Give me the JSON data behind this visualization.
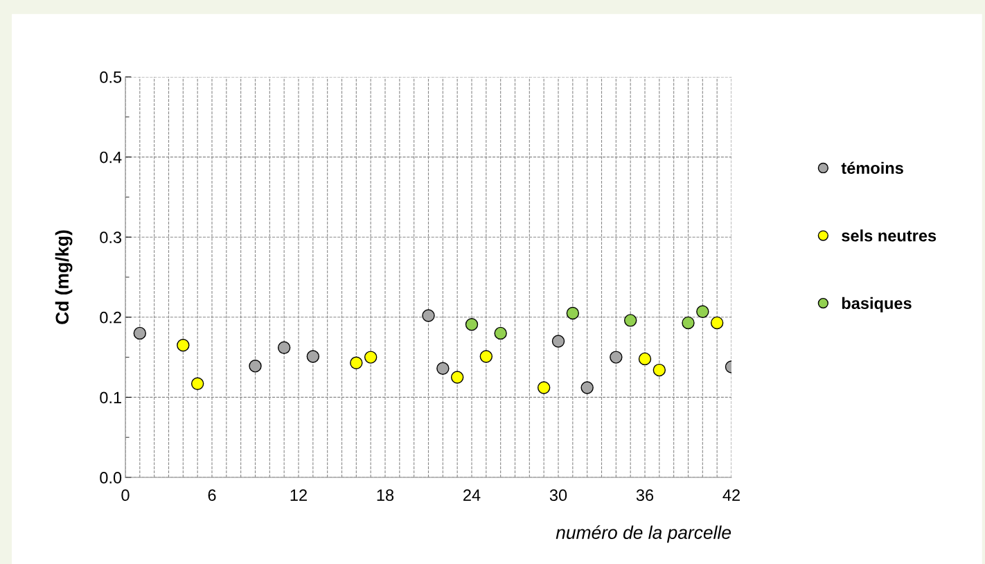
{
  "chart_data": {
    "type": "scatter",
    "xlabel": "numéro de la parcelle",
    "ylabel": "Cd (mg/kg)",
    "xlim": [
      0,
      42
    ],
    "xticks": [
      0,
      6,
      12,
      18,
      24,
      30,
      36,
      42
    ],
    "ylim": [
      0,
      0.5
    ],
    "yticks": [
      {
        "value": 0,
        "label": "0.0"
      },
      0.1,
      0.2,
      0.3,
      0.4,
      0.5
    ],
    "grid": true,
    "legend": "right",
    "marker": "circle",
    "series": [
      {
        "name": "témoins",
        "color": "#a6a6a6",
        "x": [
          1,
          9,
          11,
          13,
          21,
          22,
          30,
          32,
          34,
          42
        ],
        "values": [
          0.18,
          0.139,
          0.162,
          0.151,
          0.202,
          0.136,
          0.17,
          0.112,
          0.15,
          0.138
        ]
      },
      {
        "name": "sels neutres",
        "color": "#ffff00",
        "x": [
          4,
          5,
          16,
          17,
          23,
          25,
          29,
          36,
          37,
          41
        ],
        "values": [
          0.165,
          0.117,
          0.143,
          0.15,
          0.125,
          0.151,
          0.112,
          0.148,
          0.134,
          0.193
        ]
      },
      {
        "name": "basiques",
        "color": "#92d050",
        "x": [
          24,
          26,
          31,
          35,
          39,
          40
        ],
        "values": [
          0.191,
          0.18,
          0.205,
          0.196,
          0.193,
          0.207
        ]
      }
    ]
  }
}
